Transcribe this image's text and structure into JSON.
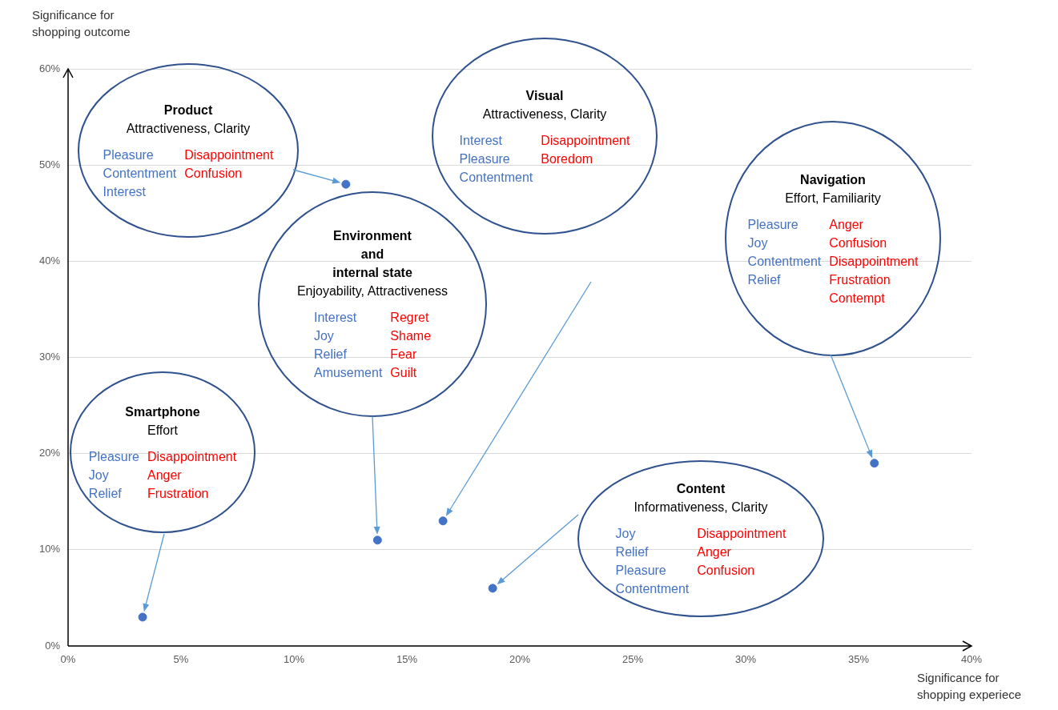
{
  "chart_data": {
    "type": "scatter",
    "xlabel": "Significance for\nshopping experiece",
    "ylabel": "Significance for\nshopping outcome",
    "x": [
      12.3,
      13.7,
      16.6,
      3.3,
      18.8,
      35.7
    ],
    "series": [
      {
        "color": "#4472c4",
        "values": [
          48,
          11,
          13,
          3,
          6,
          19
        ]
      }
    ],
    "xlim": [
      0,
      40
    ],
    "ylim": [
      0,
      60
    ],
    "xticks": [
      {
        "value": 0,
        "label": "0%"
      },
      {
        "value": 5,
        "label": "5%"
      },
      {
        "value": 10,
        "label": "10%"
      },
      {
        "value": 15,
        "label": "15%"
      },
      {
        "value": 20,
        "label": "20%"
      },
      {
        "value": 25,
        "label": "25%"
      },
      {
        "value": 30,
        "label": "30%"
      },
      {
        "value": 35,
        "label": "35%"
      },
      {
        "value": 40,
        "label": "40%"
      }
    ],
    "yticks": [
      {
        "value": 0,
        "label": "0%"
      },
      {
        "value": 10,
        "label": "10%"
      },
      {
        "value": 20,
        "label": "20%"
      },
      {
        "value": 30,
        "label": "30%"
      },
      {
        "value": 40,
        "label": "40%"
      },
      {
        "value": 50,
        "label": "50%"
      },
      {
        "value": 60,
        "label": "60%"
      }
    ],
    "grid": "y",
    "marker": "circle",
    "annotations": [
      "Product",
      "Attractiveness, Clarity",
      "Pleasure\nContentment\nInterest",
      "Disappointment\nConfusion",
      "Environment\nand\ninternal state",
      "Enjoyability, Attractiveness",
      "Interest\nJoy\nRelief\nAmusement",
      "Regret\nShame\nFear\nGuilt",
      "Visual",
      "Attractiveness, Clarity",
      "Interest\nPleasure\nContentment",
      "Disappointment\nBoredom",
      "Smartphone",
      "Effort",
      "Pleasure\nJoy\nRelief",
      "Disappointment\nAnger\nFrustration",
      "Content",
      "Informativeness, Clarity",
      "Joy\nRelief\nPleasure\nContentment",
      "Disappointment\nAnger\nConfusion",
      "Navigation",
      "Effort, Familiarity",
      "Pleasure\nJoy\nContentment\nRelief",
      "Anger\nConfusion\nDisappointment\nFrustration\nContempt"
    ]
  }
}
